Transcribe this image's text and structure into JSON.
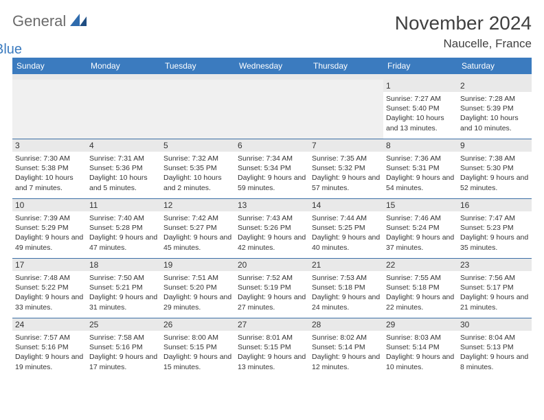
{
  "brand": {
    "part1": "General",
    "part2": "Blue"
  },
  "title": "November 2024",
  "location": "Naucelle, France",
  "weekdays": [
    "Sunday",
    "Monday",
    "Tuesday",
    "Wednesday",
    "Thursday",
    "Friday",
    "Saturday"
  ],
  "colors": {
    "header_bg": "#3b7bbf",
    "header_text": "#ffffff",
    "daynum_bg": "#e9e9e9",
    "rule": "#3b6ea5",
    "logo_gray": "#6b6b6b",
    "logo_blue": "#3b7bbf"
  },
  "weeks": [
    [
      {
        "n": "",
        "sr": "",
        "ss": "",
        "dl": ""
      },
      {
        "n": "",
        "sr": "",
        "ss": "",
        "dl": ""
      },
      {
        "n": "",
        "sr": "",
        "ss": "",
        "dl": ""
      },
      {
        "n": "",
        "sr": "",
        "ss": "",
        "dl": ""
      },
      {
        "n": "",
        "sr": "",
        "ss": "",
        "dl": ""
      },
      {
        "n": "1",
        "sr": "Sunrise: 7:27 AM",
        "ss": "Sunset: 5:40 PM",
        "dl": "Daylight: 10 hours and 13 minutes."
      },
      {
        "n": "2",
        "sr": "Sunrise: 7:28 AM",
        "ss": "Sunset: 5:39 PM",
        "dl": "Daylight: 10 hours and 10 minutes."
      }
    ],
    [
      {
        "n": "3",
        "sr": "Sunrise: 7:30 AM",
        "ss": "Sunset: 5:38 PM",
        "dl": "Daylight: 10 hours and 7 minutes."
      },
      {
        "n": "4",
        "sr": "Sunrise: 7:31 AM",
        "ss": "Sunset: 5:36 PM",
        "dl": "Daylight: 10 hours and 5 minutes."
      },
      {
        "n": "5",
        "sr": "Sunrise: 7:32 AM",
        "ss": "Sunset: 5:35 PM",
        "dl": "Daylight: 10 hours and 2 minutes."
      },
      {
        "n": "6",
        "sr": "Sunrise: 7:34 AM",
        "ss": "Sunset: 5:34 PM",
        "dl": "Daylight: 9 hours and 59 minutes."
      },
      {
        "n": "7",
        "sr": "Sunrise: 7:35 AM",
        "ss": "Sunset: 5:32 PM",
        "dl": "Daylight: 9 hours and 57 minutes."
      },
      {
        "n": "8",
        "sr": "Sunrise: 7:36 AM",
        "ss": "Sunset: 5:31 PM",
        "dl": "Daylight: 9 hours and 54 minutes."
      },
      {
        "n": "9",
        "sr": "Sunrise: 7:38 AM",
        "ss": "Sunset: 5:30 PM",
        "dl": "Daylight: 9 hours and 52 minutes."
      }
    ],
    [
      {
        "n": "10",
        "sr": "Sunrise: 7:39 AM",
        "ss": "Sunset: 5:29 PM",
        "dl": "Daylight: 9 hours and 49 minutes."
      },
      {
        "n": "11",
        "sr": "Sunrise: 7:40 AM",
        "ss": "Sunset: 5:28 PM",
        "dl": "Daylight: 9 hours and 47 minutes."
      },
      {
        "n": "12",
        "sr": "Sunrise: 7:42 AM",
        "ss": "Sunset: 5:27 PM",
        "dl": "Daylight: 9 hours and 45 minutes."
      },
      {
        "n": "13",
        "sr": "Sunrise: 7:43 AM",
        "ss": "Sunset: 5:26 PM",
        "dl": "Daylight: 9 hours and 42 minutes."
      },
      {
        "n": "14",
        "sr": "Sunrise: 7:44 AM",
        "ss": "Sunset: 5:25 PM",
        "dl": "Daylight: 9 hours and 40 minutes."
      },
      {
        "n": "15",
        "sr": "Sunrise: 7:46 AM",
        "ss": "Sunset: 5:24 PM",
        "dl": "Daylight: 9 hours and 37 minutes."
      },
      {
        "n": "16",
        "sr": "Sunrise: 7:47 AM",
        "ss": "Sunset: 5:23 PM",
        "dl": "Daylight: 9 hours and 35 minutes."
      }
    ],
    [
      {
        "n": "17",
        "sr": "Sunrise: 7:48 AM",
        "ss": "Sunset: 5:22 PM",
        "dl": "Daylight: 9 hours and 33 minutes."
      },
      {
        "n": "18",
        "sr": "Sunrise: 7:50 AM",
        "ss": "Sunset: 5:21 PM",
        "dl": "Daylight: 9 hours and 31 minutes."
      },
      {
        "n": "19",
        "sr": "Sunrise: 7:51 AM",
        "ss": "Sunset: 5:20 PM",
        "dl": "Daylight: 9 hours and 29 minutes."
      },
      {
        "n": "20",
        "sr": "Sunrise: 7:52 AM",
        "ss": "Sunset: 5:19 PM",
        "dl": "Daylight: 9 hours and 27 minutes."
      },
      {
        "n": "21",
        "sr": "Sunrise: 7:53 AM",
        "ss": "Sunset: 5:18 PM",
        "dl": "Daylight: 9 hours and 24 minutes."
      },
      {
        "n": "22",
        "sr": "Sunrise: 7:55 AM",
        "ss": "Sunset: 5:18 PM",
        "dl": "Daylight: 9 hours and 22 minutes."
      },
      {
        "n": "23",
        "sr": "Sunrise: 7:56 AM",
        "ss": "Sunset: 5:17 PM",
        "dl": "Daylight: 9 hours and 21 minutes."
      }
    ],
    [
      {
        "n": "24",
        "sr": "Sunrise: 7:57 AM",
        "ss": "Sunset: 5:16 PM",
        "dl": "Daylight: 9 hours and 19 minutes."
      },
      {
        "n": "25",
        "sr": "Sunrise: 7:58 AM",
        "ss": "Sunset: 5:16 PM",
        "dl": "Daylight: 9 hours and 17 minutes."
      },
      {
        "n": "26",
        "sr": "Sunrise: 8:00 AM",
        "ss": "Sunset: 5:15 PM",
        "dl": "Daylight: 9 hours and 15 minutes."
      },
      {
        "n": "27",
        "sr": "Sunrise: 8:01 AM",
        "ss": "Sunset: 5:15 PM",
        "dl": "Daylight: 9 hours and 13 minutes."
      },
      {
        "n": "28",
        "sr": "Sunrise: 8:02 AM",
        "ss": "Sunset: 5:14 PM",
        "dl": "Daylight: 9 hours and 12 minutes."
      },
      {
        "n": "29",
        "sr": "Sunrise: 8:03 AM",
        "ss": "Sunset: 5:14 PM",
        "dl": "Daylight: 9 hours and 10 minutes."
      },
      {
        "n": "30",
        "sr": "Sunrise: 8:04 AM",
        "ss": "Sunset: 5:13 PM",
        "dl": "Daylight: 9 hours and 8 minutes."
      }
    ]
  ]
}
